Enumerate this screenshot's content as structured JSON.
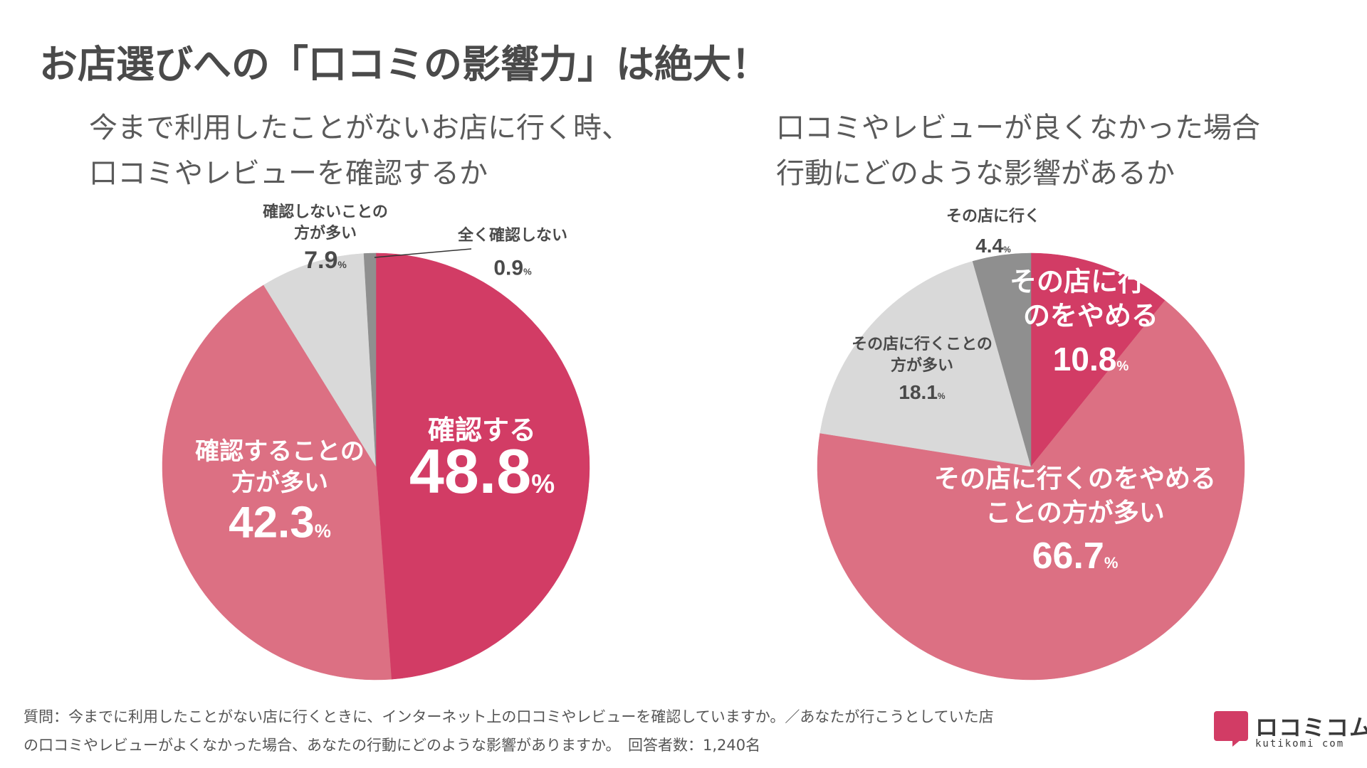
{
  "title": "お店選びへの「口コミの影響力」は絶大！",
  "colors": {
    "dark_pink": "#d23c65",
    "light_pink": "#dc7083",
    "light_gray": "#d9d9d9",
    "dark_gray": "#8f8f8f"
  },
  "chart_data": [
    {
      "type": "pie",
      "title_lines": [
        "今まで利用したことがないお店に行く時、",
        "口コミやレビューを確認するか"
      ],
      "slices": [
        {
          "label": "確認する",
          "value": 48.8,
          "value_text": "48.8",
          "color": "#d23c65"
        },
        {
          "label": "確認することの方が多い",
          "value": 42.3,
          "value_text": "42.3",
          "color": "#dc7083"
        },
        {
          "label": "確認しないことの方が多い",
          "value": 7.9,
          "value_text": "7.9",
          "color": "#d9d9d9"
        },
        {
          "label": "全く確認しない",
          "value": 0.9,
          "value_text": "0.9",
          "color": "#8f8f8f"
        }
      ],
      "label_lines": [
        [
          "確認する"
        ],
        [
          "確認することの",
          "方が多い"
        ],
        [
          "確認しないことの",
          "方が多い"
        ],
        [
          "全く確認しない"
        ]
      ],
      "unit": "%"
    },
    {
      "type": "pie",
      "title_lines": [
        "口コミやレビューが良くなかった場合",
        "行動にどのような影響があるか"
      ],
      "slices": [
        {
          "label": "その店に行くのをやめる",
          "value": 10.8,
          "value_text": "10.8",
          "color": "#d23c65"
        },
        {
          "label": "その店に行くのをやめることの方が多い",
          "value": 66.7,
          "value_text": "66.7",
          "color": "#dc7083"
        },
        {
          "label": "その店に行くことの方が多い",
          "value": 18.1,
          "value_text": "18.1",
          "color": "#d9d9d9"
        },
        {
          "label": "その店に行く",
          "value": 4.4,
          "value_text": "4.4",
          "color": "#8f8f8f"
        }
      ],
      "label_lines": [
        [
          "その店に行く",
          "のをやめる"
        ],
        [
          "その店に行くのをやめる",
          "ことの方が多い"
        ],
        [
          "その店に行くことの",
          "方が多い"
        ],
        [
          "その店に行く"
        ]
      ],
      "unit": "%"
    }
  ],
  "footer_lines": [
    "質問：今までに利用したことがない店に行くときに、インターネット上の口コミやレビューを確認していますか。／あなたが行こうとしていた店",
    "の口コミやレビューがよくなかった場合、あなたの行動にどのような影響がありますか。　回答者数：1,240名"
  ],
  "logo": {
    "text": "ロコミコム",
    "sub": "kutikomi com"
  }
}
